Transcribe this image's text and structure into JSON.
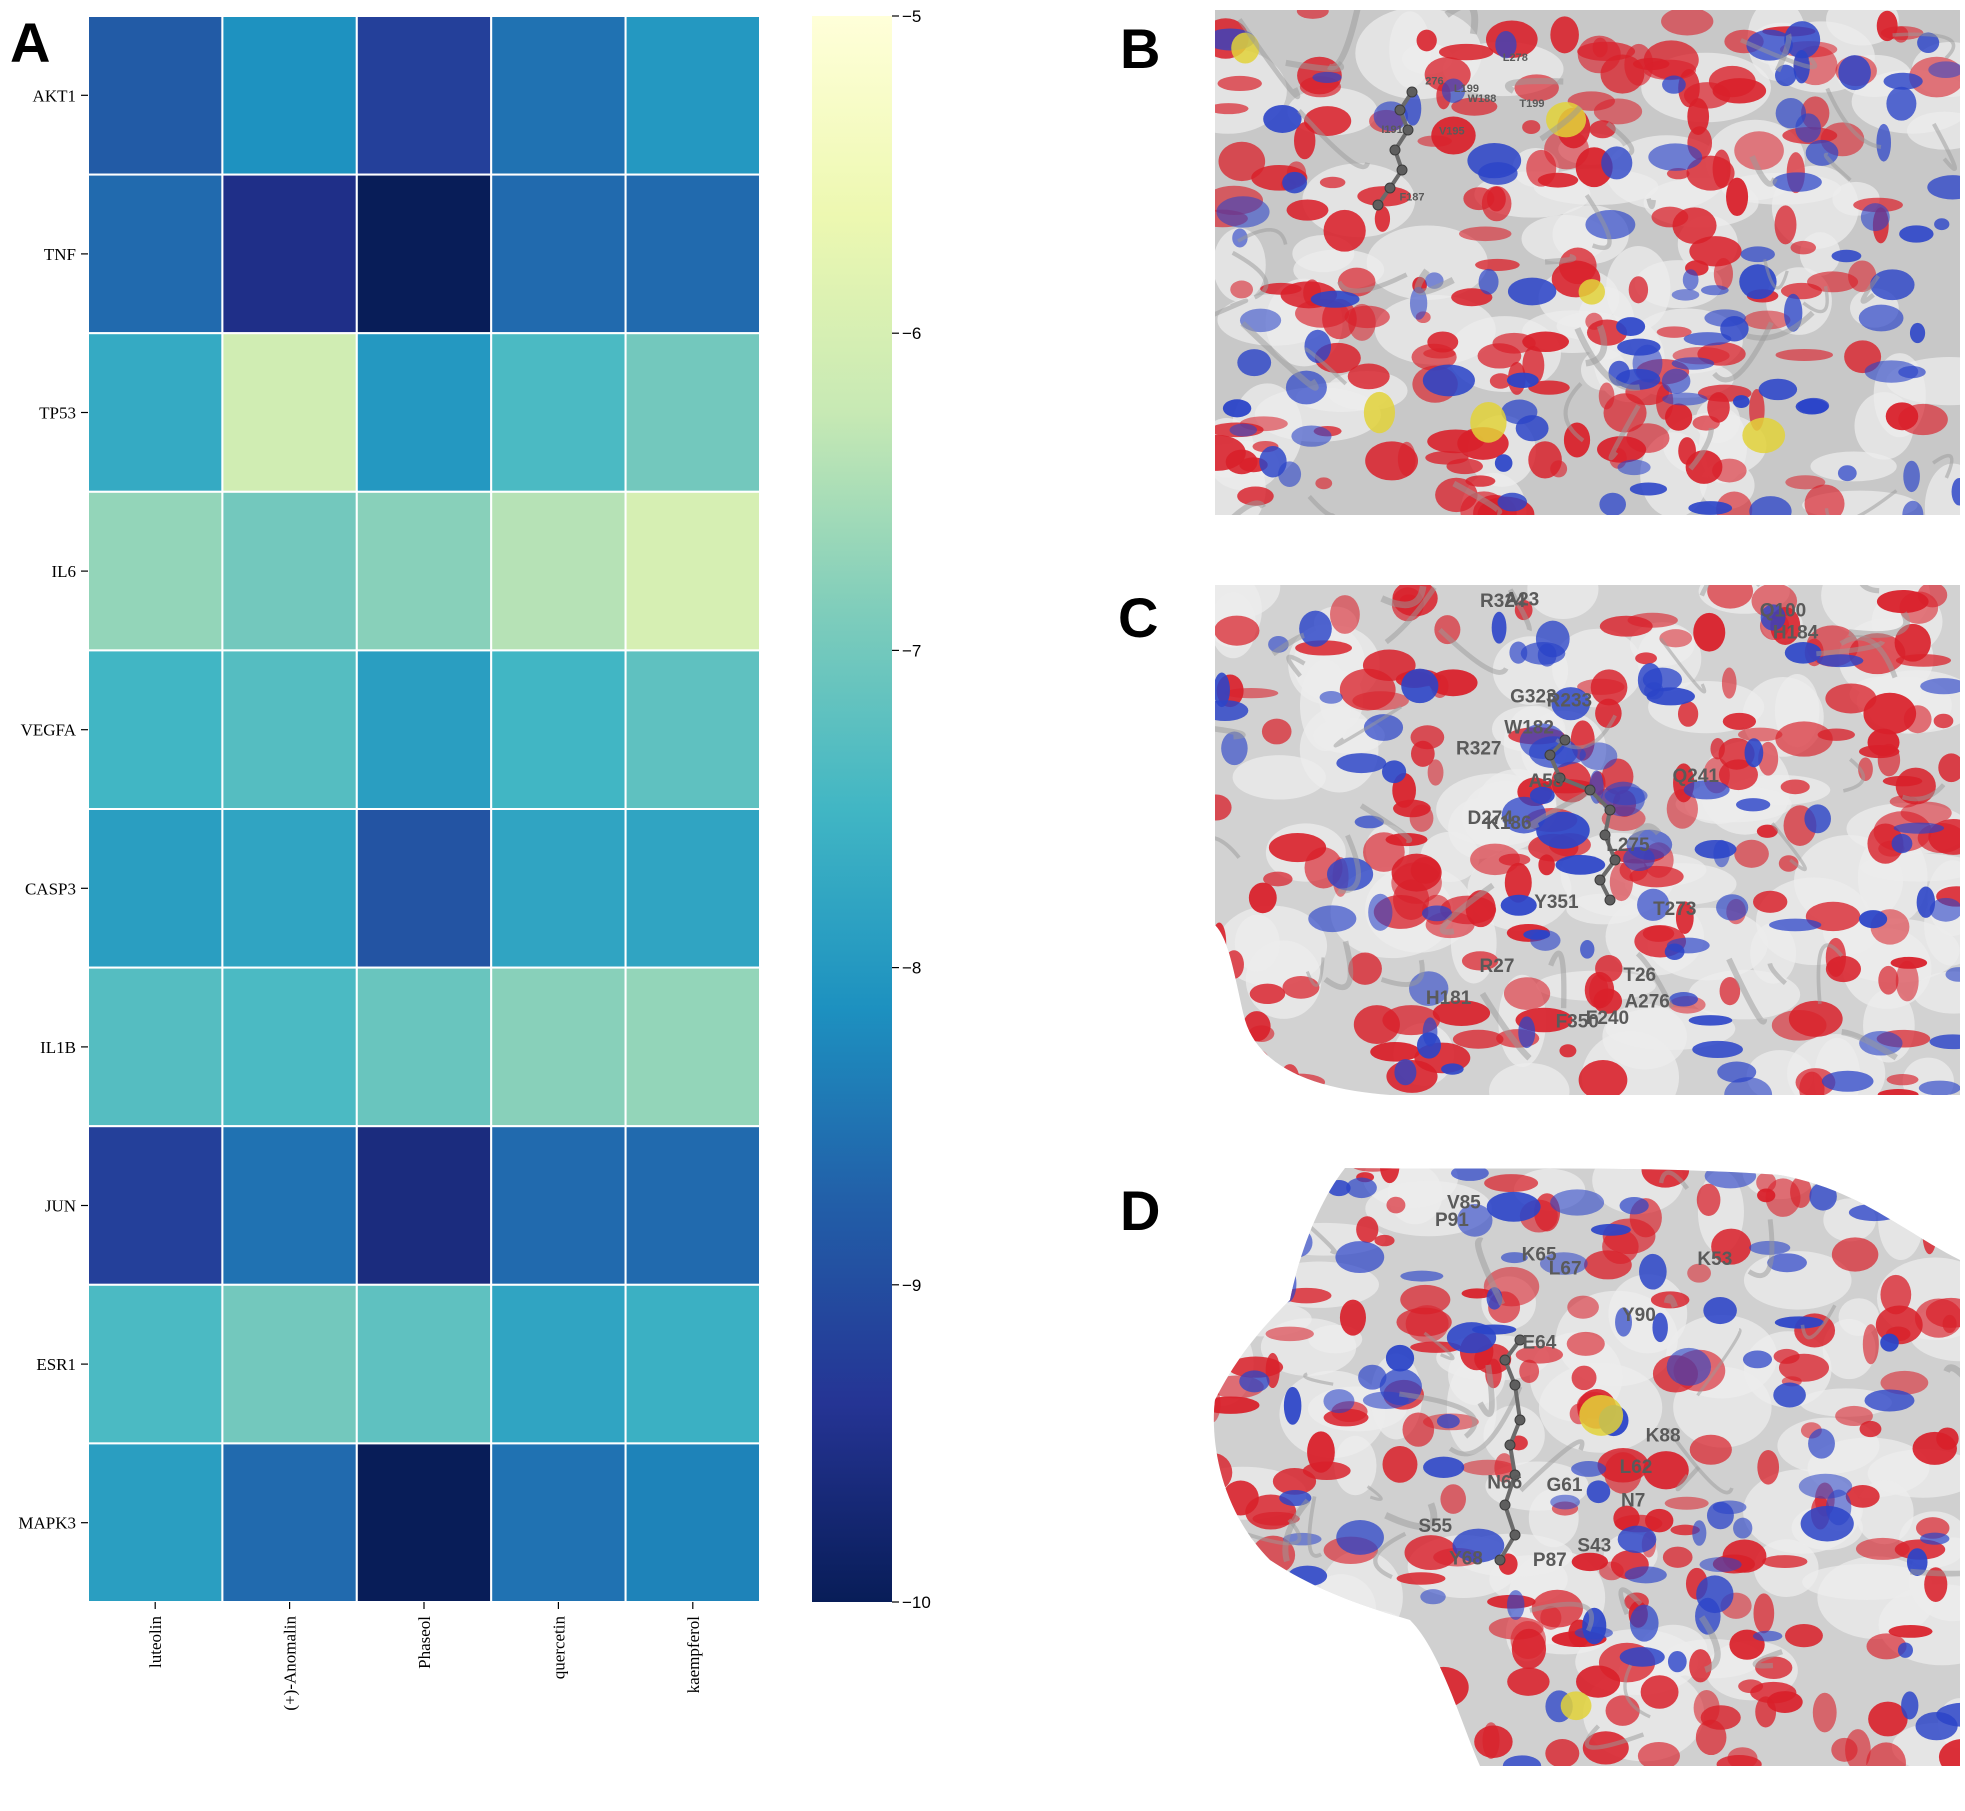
{
  "panels": {
    "a": "A",
    "b": "B",
    "c": "C",
    "d": "D"
  },
  "chart_data": {
    "type": "heatmap",
    "rows": [
      "AKT1",
      "TNF",
      "TP53",
      "IL6",
      "VEGFA",
      "CASP3",
      "IL1B",
      "JUN",
      "ESR1",
      "MAPK3"
    ],
    "columns": [
      "luteolin",
      "(+)-Anomalin",
      "Phaseol",
      "quercetin",
      "kaempferol"
    ],
    "values": [
      [
        -8.8,
        -8.1,
        -9.2,
        -8.5,
        -8.0
      ],
      [
        -8.6,
        -9.5,
        -10.0,
        -8.6,
        -8.6
      ],
      [
        -7.7,
        -6.1,
        -8.0,
        -7.4,
        -7.0
      ],
      [
        -6.7,
        -7.0,
        -6.8,
        -6.4,
        -6.0
      ],
      [
        -7.5,
        -7.3,
        -7.9,
        -7.5,
        -7.2
      ],
      [
        -7.9,
        -7.8,
        -8.9,
        -7.8,
        -7.8
      ],
      [
        -7.3,
        -7.4,
        -7.1,
        -6.8,
        -6.7
      ],
      [
        -9.2,
        -8.5,
        -9.6,
        -8.6,
        -8.6
      ],
      [
        -7.4,
        -7.0,
        -7.2,
        -7.8,
        -7.6
      ],
      [
        -7.9,
        -8.6,
        -10.0,
        -8.5,
        -8.3
      ]
    ],
    "colorbar": {
      "min": -10,
      "max": -5,
      "ticks": [
        -5,
        -6,
        -7,
        -8,
        -9,
        -10
      ],
      "tick_labels": [
        "−5",
        "−6",
        "−7",
        "−8",
        "−9",
        "−10"
      ],
      "colormap": "YlGnBu",
      "stops": [
        "#081d58",
        "#253494",
        "#225ea8",
        "#1d91c0",
        "#41b6c4",
        "#7fcdbb",
        "#c7e9b4",
        "#edf8b1",
        "#ffffd9"
      ]
    },
    "grid_line_color": "#ffffff",
    "title": "",
    "xlabel": "",
    "ylabel": ""
  },
  "docking_panels": [
    {
      "id": "B",
      "residues": [
        "L199",
        "T199",
        "L278",
        "V195",
        "276",
        "I191",
        "W188",
        "F187"
      ]
    },
    {
      "id": "C",
      "residues": [
        "Q241",
        "F240",
        "K186",
        "H184",
        "H181",
        "W182",
        "T273",
        "D274",
        "R233",
        "A276",
        "L275",
        "Q100",
        "A58",
        "T26",
        "A23",
        "G323",
        "R27",
        "Y351",
        "R324",
        "F350",
        "R327"
      ]
    },
    {
      "id": "D",
      "residues": [
        "K88",
        "V85",
        "P87",
        "Y90",
        "N66",
        "L67",
        "P91",
        "Y68",
        "K65",
        "G61",
        "E64",
        "L62",
        "S55",
        "S43",
        "K53",
        "N7"
      ]
    }
  ],
  "surface_colors": {
    "background": "#cfcfcf",
    "negative": "#d9202a",
    "positive": "#2b44c8",
    "sulfur": "#e2d23a",
    "neutral": "#ececec"
  }
}
